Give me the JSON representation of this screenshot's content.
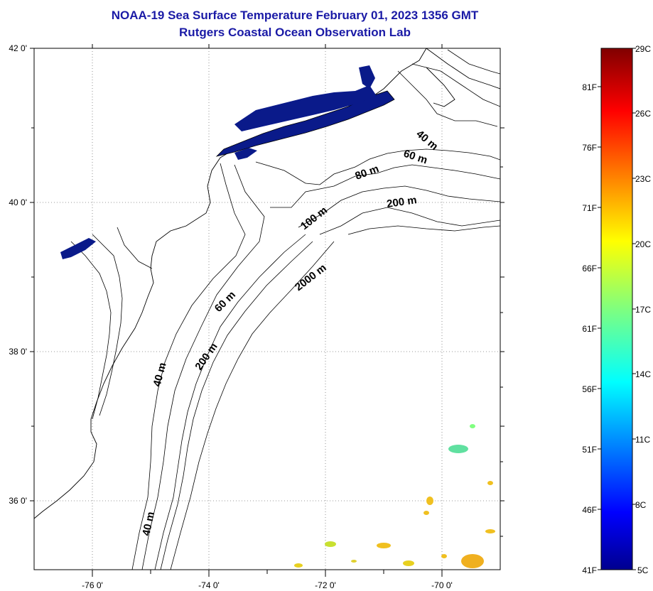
{
  "title_line1": "NOAA-19 Sea Surface Temperature February 01, 2023 1356 GMT",
  "title_line2": "Rutgers Coastal Ocean Observation Lab",
  "map": {
    "lat_labels": [
      "42 0'",
      "40 0'",
      "38 0'",
      "36 0'"
    ],
    "lon_labels": [
      "-76 0'",
      "-74 0'",
      "-72 0'",
      "-70 0'"
    ],
    "gridlines": "dotted"
  },
  "isobath_labels": [
    "40 m",
    "60 m",
    "80 m",
    "200 m",
    "100 m",
    "2000 m",
    "60 m",
    "200 m",
    "40 m",
    "40 m"
  ],
  "colorbar": {
    "celsius_labels": [
      "29C",
      "26C",
      "23C",
      "20C",
      "17C",
      "14C",
      "11C",
      "8C",
      "5C"
    ],
    "fahrenheit_labels": [
      "81F",
      "76F",
      "71F",
      "66F",
      "61F",
      "56F",
      "51F",
      "46F",
      "41F"
    ],
    "colormap": "jet",
    "color_min": "#00008f",
    "color_max": "#800000"
  },
  "colors": {
    "title": "#1a1aa6",
    "cold_sst": "#0a1a8a",
    "warm_sst": "#f0c020"
  }
}
